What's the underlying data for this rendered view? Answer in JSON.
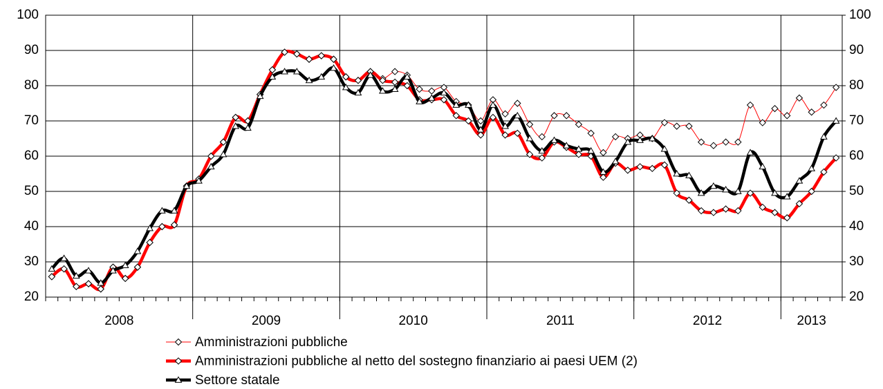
{
  "chart_data": {
    "type": "line",
    "categories": [
      "2008",
      null,
      null,
      null,
      null,
      null,
      null,
      null,
      null,
      null,
      null,
      null,
      "2009",
      null,
      null,
      null,
      null,
      null,
      null,
      null,
      null,
      null,
      null,
      null,
      "2010",
      null,
      null,
      null,
      null,
      null,
      null,
      null,
      null,
      null,
      null,
      null,
      "2011",
      null,
      null,
      null,
      null,
      null,
      null,
      null,
      null,
      null,
      null,
      null,
      "2012",
      null,
      null,
      null,
      null,
      null,
      null,
      null,
      null,
      null,
      null,
      null,
      "2013",
      null,
      null,
      null,
      null
    ],
    "series": [
      {
        "name": "Amministrazioni pubbliche",
        "color": "#ff0000",
        "width": 1,
        "marker": "diamond",
        "values": [
          25.8,
          28,
          23,
          23.8,
          22.3,
          28.5,
          25.3,
          28.5,
          35.5,
          40,
          40.5,
          51.5,
          53.5,
          60,
          64,
          71,
          70,
          77.5,
          84.5,
          89.5,
          89,
          87.5,
          88.5,
          87.5,
          82.5,
          81.5,
          84,
          82,
          84,
          83,
          79,
          78.5,
          79.5,
          75.5,
          74.5,
          70,
          76,
          72,
          75,
          69,
          65.5,
          71.5,
          71.5,
          69,
          66.5,
          61,
          65.5,
          65,
          66,
          65,
          69.5,
          68.5,
          68.5,
          64,
          63,
          64,
          64,
          74.5,
          69.5,
          73.5,
          71.5,
          76.5,
          72.5,
          74.5,
          79.5
        ]
      },
      {
        "name": "Amministrazioni pubbliche al netto del sostegno finanziario ai paesi UEM (2)",
        "color": "#ff0000",
        "width": 4.5,
        "marker": "diamond",
        "values": [
          25.8,
          28,
          23,
          23.8,
          22.3,
          28.5,
          25.3,
          28.5,
          35.5,
          40,
          40.5,
          51.5,
          53.5,
          60,
          64,
          71,
          70,
          77.5,
          84.5,
          89.5,
          89,
          87.5,
          88.5,
          87.5,
          82.5,
          81.5,
          84,
          81.5,
          81,
          80,
          76,
          76,
          76,
          71.5,
          70,
          66,
          71,
          66,
          66.5,
          60.5,
          59.5,
          64,
          62.5,
          60.5,
          60,
          54,
          58,
          56,
          57,
          56.5,
          57.5,
          49.5,
          47.5,
          44.5,
          44,
          45,
          44.5,
          49.5,
          45.5,
          44,
          42.5,
          46.5,
          50,
          55.5,
          59.5
        ]
      },
      {
        "name": "Settore statale",
        "color": "#000000",
        "width": 4.5,
        "marker": "triangle",
        "values": [
          28,
          31,
          26,
          27.5,
          24,
          27.5,
          29,
          33,
          39.5,
          44.5,
          44.5,
          51.5,
          53,
          57,
          60.5,
          68.5,
          68,
          77,
          82.5,
          84,
          84,
          81.5,
          82.5,
          85,
          79.5,
          78,
          83,
          78.5,
          79,
          82.5,
          75.5,
          76.5,
          78,
          74.5,
          74.5,
          67.5,
          74.5,
          68.5,
          71.5,
          65,
          61.5,
          64.5,
          63,
          62,
          61.5,
          55.5,
          58.5,
          64,
          64.5,
          65,
          62,
          55,
          54.5,
          49.5,
          51.5,
          50.5,
          50,
          61,
          57,
          49.5,
          48.5,
          53,
          56.5,
          65.5,
          70
        ]
      }
    ],
    "ylim": [
      20,
      100
    ],
    "yticks": [
      20,
      30,
      40,
      50,
      60,
      70,
      80,
      90,
      100
    ],
    "y2lim": [
      20,
      100
    ],
    "y2ticks": [
      20,
      30,
      40,
      50,
      60,
      70,
      80,
      90,
      100
    ],
    "grid": true
  }
}
